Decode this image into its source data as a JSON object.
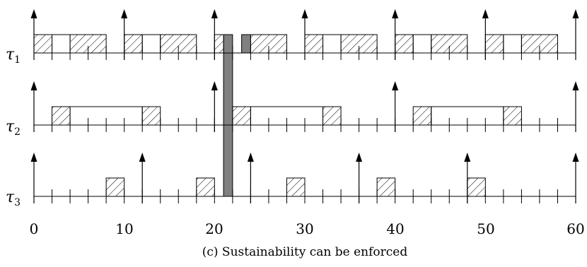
{
  "caption": "(c) Sustainability can be enforced",
  "x_ticks": [
    "0",
    "10",
    "20",
    "30",
    "40",
    "50",
    "60"
  ],
  "tasks": [
    {
      "symbol": "τ",
      "index": "1",
      "releases": [
        0,
        10,
        20,
        30,
        40,
        50,
        60
      ],
      "hatched": [
        [
          0,
          2
        ],
        [
          4,
          8
        ],
        [
          10,
          12
        ],
        [
          14,
          18
        ],
        [
          20,
          21
        ],
        [
          24,
          28
        ],
        [
          30,
          32
        ],
        [
          34,
          38
        ],
        [
          40,
          42
        ],
        [
          44,
          48
        ],
        [
          50,
          52
        ],
        [
          54,
          58
        ]
      ],
      "open": [
        [
          2,
          4
        ],
        [
          12,
          14
        ],
        [
          32,
          34
        ],
        [
          42,
          44
        ],
        [
          52,
          54
        ]
      ],
      "gray": [
        [
          23,
          24
        ]
      ]
    },
    {
      "symbol": "τ",
      "index": "2",
      "releases": [
        0,
        20,
        40,
        60
      ],
      "hatched": [
        [
          2,
          4
        ],
        [
          12,
          14
        ],
        [
          22,
          24
        ],
        [
          32,
          34
        ],
        [
          42,
          44
        ],
        [
          52,
          54
        ]
      ],
      "open": [
        [
          4,
          12
        ],
        [
          24,
          32
        ],
        [
          44,
          52
        ]
      ],
      "gray": []
    },
    {
      "symbol": "τ",
      "index": "3",
      "releases": [
        0,
        12,
        24,
        36,
        48,
        60
      ],
      "hatched": [
        [
          8,
          10
        ],
        [
          18,
          20
        ],
        [
          28,
          30
        ],
        [
          38,
          40
        ],
        [
          48,
          50
        ]
      ],
      "open": [],
      "gray": []
    }
  ],
  "blocking_interval": [
    21,
    22
  ],
  "colors": {
    "gray": "#808080",
    "line": "#000000"
  }
}
